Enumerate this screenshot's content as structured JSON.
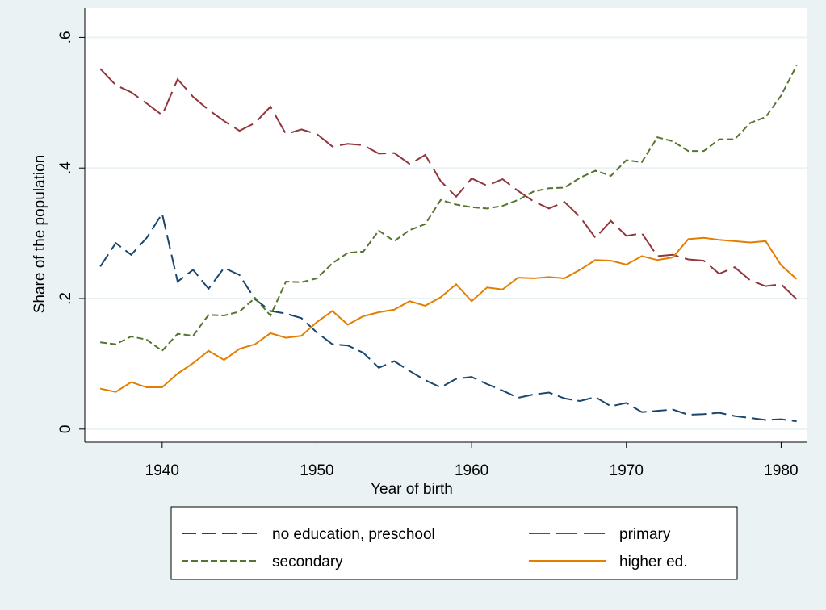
{
  "chart_data": {
    "type": "line",
    "x": [
      1936,
      1937,
      1938,
      1939,
      1940,
      1941,
      1942,
      1943,
      1944,
      1945,
      1946,
      1947,
      1948,
      1949,
      1950,
      1951,
      1952,
      1953,
      1954,
      1955,
      1956,
      1957,
      1958,
      1959,
      1960,
      1961,
      1962,
      1963,
      1964,
      1965,
      1966,
      1967,
      1968,
      1969,
      1970,
      1971,
      1972,
      1973,
      1974,
      1975,
      1976,
      1977,
      1978,
      1979,
      1980,
      1981
    ],
    "series": [
      {
        "name": "no education, preschool",
        "color": "#1a476f",
        "values": [
          0.249,
          0.285,
          0.267,
          0.293,
          0.33,
          0.226,
          0.244,
          0.215,
          0.247,
          0.236,
          0.199,
          0.181,
          0.177,
          0.17,
          0.148,
          0.13,
          0.128,
          0.117,
          0.094,
          0.104,
          0.089,
          0.075,
          0.064,
          0.077,
          0.08,
          0.069,
          0.059,
          0.048,
          0.053,
          0.056,
          0.047,
          0.043,
          0.049,
          0.035,
          0.04,
          0.026,
          0.028,
          0.03,
          0.022,
          0.023,
          0.025,
          0.02,
          0.017,
          0.014,
          0.015,
          0.012
        ]
      },
      {
        "name": "primary",
        "color": "#90353b",
        "values": [
          0.552,
          0.527,
          0.516,
          0.499,
          0.481,
          0.536,
          0.509,
          0.489,
          0.472,
          0.457,
          0.469,
          0.494,
          0.452,
          0.459,
          0.452,
          0.433,
          0.437,
          0.435,
          0.422,
          0.423,
          0.406,
          0.42,
          0.38,
          0.356,
          0.384,
          0.373,
          0.383,
          0.365,
          0.349,
          0.338,
          0.348,
          0.325,
          0.293,
          0.319,
          0.296,
          0.3,
          0.265,
          0.267,
          0.26,
          0.258,
          0.238,
          0.248,
          0.228,
          0.219,
          0.222,
          0.199
        ]
      },
      {
        "name": "secondary",
        "color": "#55752f",
        "values": [
          0.133,
          0.13,
          0.142,
          0.137,
          0.12,
          0.146,
          0.143,
          0.175,
          0.174,
          0.18,
          0.201,
          0.174,
          0.226,
          0.225,
          0.231,
          0.254,
          0.27,
          0.272,
          0.304,
          0.288,
          0.305,
          0.314,
          0.351,
          0.344,
          0.34,
          0.338,
          0.342,
          0.351,
          0.364,
          0.369,
          0.37,
          0.385,
          0.396,
          0.388,
          0.412,
          0.409,
          0.447,
          0.441,
          0.426,
          0.426,
          0.444,
          0.444,
          0.469,
          0.478,
          0.511,
          0.557
        ]
      },
      {
        "name": "higher ed.",
        "color": "#e37e00",
        "values": [
          0.062,
          0.057,
          0.072,
          0.064,
          0.064,
          0.085,
          0.101,
          0.12,
          0.106,
          0.123,
          0.13,
          0.147,
          0.14,
          0.143,
          0.164,
          0.181,
          0.16,
          0.173,
          0.179,
          0.183,
          0.196,
          0.189,
          0.202,
          0.222,
          0.196,
          0.217,
          0.214,
          0.232,
          0.231,
          0.233,
          0.231,
          0.244,
          0.259,
          0.258,
          0.252,
          0.265,
          0.259,
          0.263,
          0.291,
          0.293,
          0.29,
          0.288,
          0.286,
          0.288,
          0.251,
          0.23
        ]
      }
    ],
    "xlabel": "Year of birth",
    "ylabel": "Share of the population",
    "xlim": [
      1935,
      1981.7
    ],
    "xticks": [
      1940,
      1950,
      1960,
      1970,
      1980
    ],
    "ylim": [
      -0.02,
      0.645
    ],
    "yticks": [
      0,
      {
        "value": 0.2,
        "label": ".2"
      },
      {
        "value": 0.4,
        "label": ".4"
      },
      {
        "value": 0.6,
        "label": ".6"
      }
    ],
    "grid": true,
    "legend": "bottom"
  }
}
